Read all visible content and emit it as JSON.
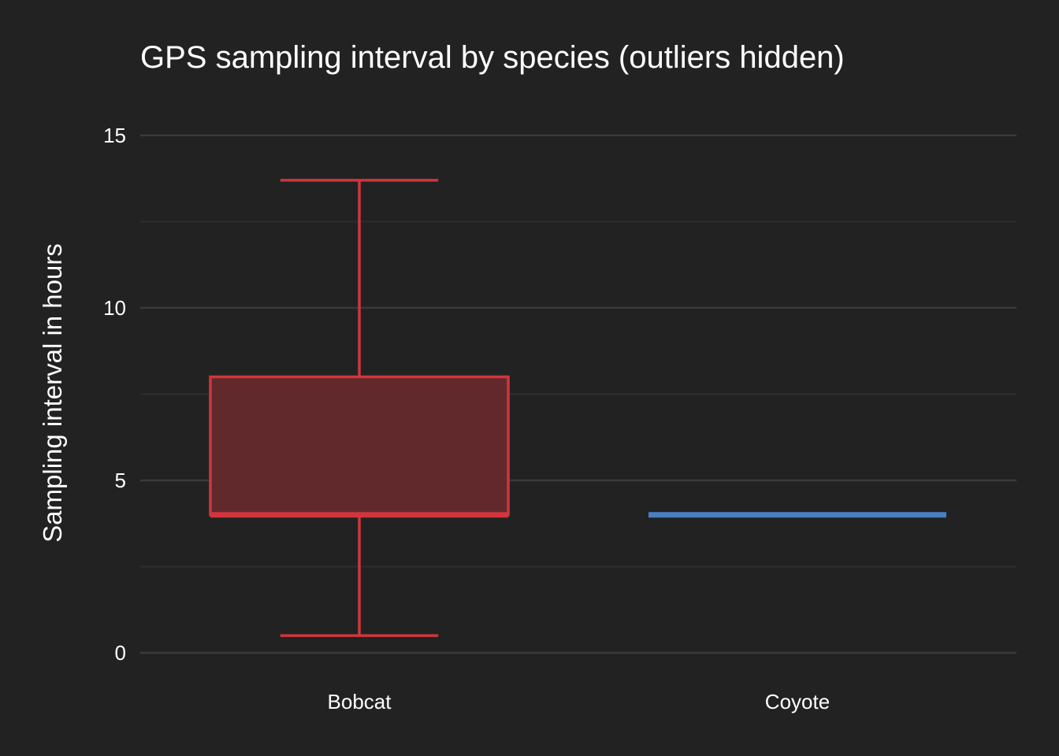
{
  "chart_data": {
    "type": "boxplot",
    "title": "GPS sampling interval by species (outliers hidden)",
    "xlabel": "",
    "ylabel": "Sampling interval in hours",
    "ylim": [
      0,
      15.5
    ],
    "y_ticks": [
      0,
      5,
      10,
      15
    ],
    "y_minor_ticks": [
      2.5,
      7.5,
      12.5
    ],
    "grid": true,
    "legend": "none",
    "categories": [
      "Bobcat",
      "Coyote"
    ],
    "series": [
      {
        "category": "Bobcat",
        "min": 0.5,
        "q1": 4,
        "median": 4,
        "q3": 8,
        "max": 13.7,
        "color": "#d0363c",
        "fill": "#61292b"
      },
      {
        "category": "Coyote",
        "min": 4,
        "q1": 4,
        "median": 4,
        "q3": 4,
        "max": 4,
        "color": "#4a7fc1",
        "fill": "#4a7fc1"
      }
    ],
    "background": "#222222",
    "grid_color": "#3a3a3a"
  }
}
